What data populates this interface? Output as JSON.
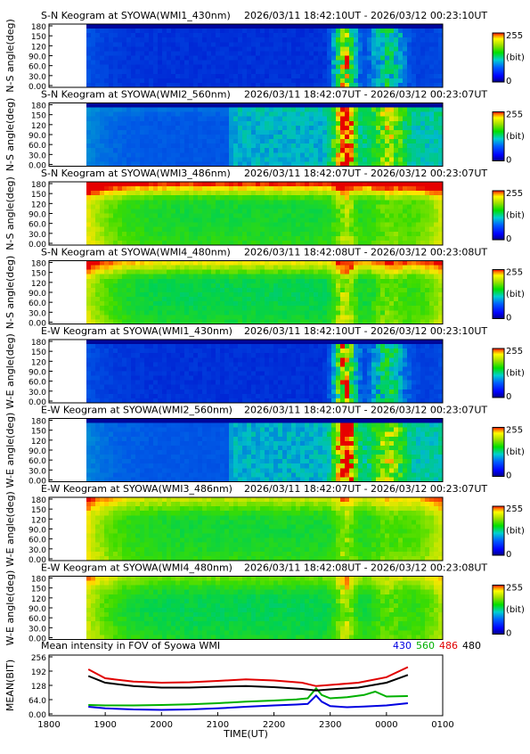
{
  "panels": [
    {
      "title": "S-N Keogram at SYOWA(WMI1_430nm)",
      "time_range": "2026/03/11 18:42:10UT - 2026/03/12 00:23:10UT",
      "ylabel": "N-S angle(deg)",
      "bright": 0,
      "aurora": 0.9,
      "top_boost": 0
    },
    {
      "title": "S-N Keogram at SYOWA(WMI2_560nm)",
      "time_range": "2026/03/11 18:42:07UT - 2026/03/12 00:23:07UT",
      "ylabel": "N-S angle(deg)",
      "bright": 1,
      "aurora": 1.0,
      "top_boost": 0.05
    },
    {
      "title": "S-N Keogram at SYOWA(WMI3_486nm)",
      "time_range": "2026/03/11 18:42:07UT - 2026/03/12 00:23:07UT",
      "ylabel": "N-S angle(deg)",
      "bright": 3,
      "aurora": 0.25,
      "top_boost": 0.35
    },
    {
      "title": "S-N Keogram at SYOWA(WMI4_480nm)",
      "time_range": "2026/03/11 18:42:08UT - 2026/03/12 00:23:08UT",
      "ylabel": "N-S angle(deg)",
      "bright": 2,
      "aurora": 0.35,
      "top_boost": 0.25
    },
    {
      "title": "E-W Keogram at SYOWA(WMI1_430nm)",
      "time_range": "2026/03/11 18:42:10UT - 2026/03/12 00:23:10UT",
      "ylabel": "W-E angle(deg)",
      "bright": 0,
      "aurora": 1.0,
      "top_boost": 0
    },
    {
      "title": "E-W Keogram at SYOWA(WMI2_560nm)",
      "time_range": "2026/03/11 18:42:07UT - 2026/03/12 00:23:07UT",
      "ylabel": "W-E angle(deg)",
      "bright": 1,
      "aurora": 1.0,
      "top_boost": 0
    },
    {
      "title": "E-W Keogram at SYOWA(WMI3_486nm)",
      "time_range": "2026/03/11 18:42:07UT - 2026/03/12 00:23:07UT",
      "ylabel": "W-E angle(deg)",
      "bright": 3,
      "aurora": 0.2,
      "top_boost": 0.15
    },
    {
      "title": "E-W Keogram at SYOWA(WMI4_480nm)",
      "time_range": "2026/03/11 18:42:08UT - 2026/03/12 00:23:08UT",
      "ylabel": "W-E angle(deg)",
      "bright": 2,
      "aurora": 0.3,
      "top_boost": 0.1
    }
  ],
  "keogram_yticks": [
    "180",
    "150",
    "120",
    "90.0",
    "60.0",
    "30.0",
    "0.00"
  ],
  "colorbar": {
    "max_label": "255",
    "unit_label": "(bit)",
    "min_label": "0"
  },
  "chart_data": {
    "type": "line",
    "title": "Mean intensity in FOV of Syowa WMI",
    "xlabel": "TIME(UT)",
    "ylabel": "MEAN(BIT)",
    "x_range_hours": [
      18,
      25
    ],
    "xtick_labels": [
      "1800",
      "1900",
      "2000",
      "2100",
      "2200",
      "2300",
      "0000",
      "0100"
    ],
    "ylim": [
      0,
      256
    ],
    "yticks": [
      0,
      64,
      128,
      192,
      256
    ],
    "ytick_labels": [
      "0.00",
      "64.0",
      "128",
      "192",
      "256"
    ],
    "data_span_hours": [
      18.7,
      24.38
    ],
    "series": [
      {
        "name": "430",
        "color": "#0000e0",
        "x": [
          18.7,
          19.0,
          19.5,
          20.0,
          20.5,
          21.0,
          21.5,
          22.0,
          22.4,
          22.6,
          22.75,
          22.85,
          23.0,
          23.3,
          23.6,
          24.0,
          24.38
        ],
        "y": [
          32,
          25,
          20,
          18,
          20,
          25,
          32,
          38,
          42,
          45,
          82,
          55,
          35,
          30,
          33,
          38,
          48
        ]
      },
      {
        "name": "560",
        "color": "#00b000",
        "x": [
          18.7,
          19.0,
          19.5,
          20.0,
          20.5,
          21.0,
          21.5,
          22.0,
          22.4,
          22.6,
          22.75,
          22.85,
          23.0,
          23.3,
          23.6,
          23.8,
          24.0,
          24.38
        ],
        "y": [
          40,
          38,
          38,
          40,
          43,
          48,
          55,
          60,
          65,
          70,
          115,
          85,
          70,
          75,
          85,
          100,
          78,
          80
        ]
      },
      {
        "name": "486",
        "color": "#e00000",
        "x": [
          18.7,
          19.0,
          19.5,
          20.0,
          20.5,
          21.0,
          21.5,
          22.0,
          22.5,
          22.75,
          23.0,
          23.5,
          24.0,
          24.38
        ],
        "y": [
          200,
          160,
          145,
          140,
          142,
          148,
          155,
          150,
          140,
          125,
          130,
          140,
          165,
          210
        ]
      },
      {
        "name": "480",
        "color": "#000000",
        "x": [
          18.7,
          19.0,
          19.5,
          20.0,
          20.5,
          21.0,
          21.5,
          22.0,
          22.5,
          22.75,
          23.0,
          23.5,
          24.0,
          24.38
        ],
        "y": [
          170,
          140,
          125,
          118,
          118,
          122,
          125,
          120,
          112,
          105,
          110,
          118,
          140,
          175
        ]
      }
    ]
  }
}
